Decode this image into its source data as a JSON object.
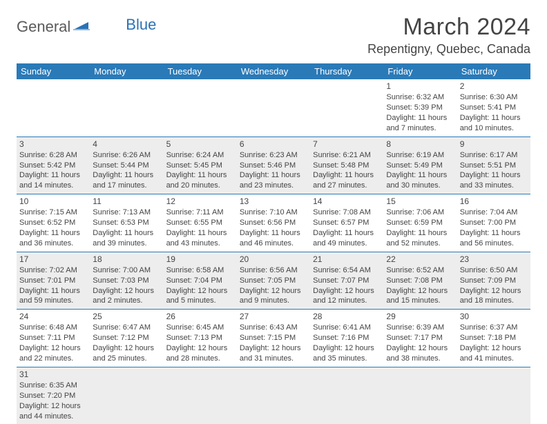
{
  "logo": {
    "part1": "General",
    "part2": "Blue"
  },
  "title": "March 2024",
  "location": "Repentigny, Quebec, Canada",
  "colors": {
    "header_bg": "#2a7ab8",
    "header_text": "#ffffff",
    "alt_row_bg": "#ededed",
    "border": "#2a7ab8",
    "logo_gray": "#5a5a5a",
    "logo_blue": "#2a72b5",
    "text": "#444"
  },
  "weekdays": [
    "Sunday",
    "Monday",
    "Tuesday",
    "Wednesday",
    "Thursday",
    "Friday",
    "Saturday"
  ],
  "weeks": [
    [
      null,
      null,
      null,
      null,
      null,
      {
        "n": "1",
        "sr": "Sunrise: 6:32 AM",
        "ss": "Sunset: 5:39 PM",
        "d1": "Daylight: 11 hours",
        "d2": "and 7 minutes."
      },
      {
        "n": "2",
        "sr": "Sunrise: 6:30 AM",
        "ss": "Sunset: 5:41 PM",
        "d1": "Daylight: 11 hours",
        "d2": "and 10 minutes."
      }
    ],
    [
      {
        "n": "3",
        "sr": "Sunrise: 6:28 AM",
        "ss": "Sunset: 5:42 PM",
        "d1": "Daylight: 11 hours",
        "d2": "and 14 minutes."
      },
      {
        "n": "4",
        "sr": "Sunrise: 6:26 AM",
        "ss": "Sunset: 5:44 PM",
        "d1": "Daylight: 11 hours",
        "d2": "and 17 minutes."
      },
      {
        "n": "5",
        "sr": "Sunrise: 6:24 AM",
        "ss": "Sunset: 5:45 PM",
        "d1": "Daylight: 11 hours",
        "d2": "and 20 minutes."
      },
      {
        "n": "6",
        "sr": "Sunrise: 6:23 AM",
        "ss": "Sunset: 5:46 PM",
        "d1": "Daylight: 11 hours",
        "d2": "and 23 minutes."
      },
      {
        "n": "7",
        "sr": "Sunrise: 6:21 AM",
        "ss": "Sunset: 5:48 PM",
        "d1": "Daylight: 11 hours",
        "d2": "and 27 minutes."
      },
      {
        "n": "8",
        "sr": "Sunrise: 6:19 AM",
        "ss": "Sunset: 5:49 PM",
        "d1": "Daylight: 11 hours",
        "d2": "and 30 minutes."
      },
      {
        "n": "9",
        "sr": "Sunrise: 6:17 AM",
        "ss": "Sunset: 5:51 PM",
        "d1": "Daylight: 11 hours",
        "d2": "and 33 minutes."
      }
    ],
    [
      {
        "n": "10",
        "sr": "Sunrise: 7:15 AM",
        "ss": "Sunset: 6:52 PM",
        "d1": "Daylight: 11 hours",
        "d2": "and 36 minutes."
      },
      {
        "n": "11",
        "sr": "Sunrise: 7:13 AM",
        "ss": "Sunset: 6:53 PM",
        "d1": "Daylight: 11 hours",
        "d2": "and 39 minutes."
      },
      {
        "n": "12",
        "sr": "Sunrise: 7:11 AM",
        "ss": "Sunset: 6:55 PM",
        "d1": "Daylight: 11 hours",
        "d2": "and 43 minutes."
      },
      {
        "n": "13",
        "sr": "Sunrise: 7:10 AM",
        "ss": "Sunset: 6:56 PM",
        "d1": "Daylight: 11 hours",
        "d2": "and 46 minutes."
      },
      {
        "n": "14",
        "sr": "Sunrise: 7:08 AM",
        "ss": "Sunset: 6:57 PM",
        "d1": "Daylight: 11 hours",
        "d2": "and 49 minutes."
      },
      {
        "n": "15",
        "sr": "Sunrise: 7:06 AM",
        "ss": "Sunset: 6:59 PM",
        "d1": "Daylight: 11 hours",
        "d2": "and 52 minutes."
      },
      {
        "n": "16",
        "sr": "Sunrise: 7:04 AM",
        "ss": "Sunset: 7:00 PM",
        "d1": "Daylight: 11 hours",
        "d2": "and 56 minutes."
      }
    ],
    [
      {
        "n": "17",
        "sr": "Sunrise: 7:02 AM",
        "ss": "Sunset: 7:01 PM",
        "d1": "Daylight: 11 hours",
        "d2": "and 59 minutes."
      },
      {
        "n": "18",
        "sr": "Sunrise: 7:00 AM",
        "ss": "Sunset: 7:03 PM",
        "d1": "Daylight: 12 hours",
        "d2": "and 2 minutes."
      },
      {
        "n": "19",
        "sr": "Sunrise: 6:58 AM",
        "ss": "Sunset: 7:04 PM",
        "d1": "Daylight: 12 hours",
        "d2": "and 5 minutes."
      },
      {
        "n": "20",
        "sr": "Sunrise: 6:56 AM",
        "ss": "Sunset: 7:05 PM",
        "d1": "Daylight: 12 hours",
        "d2": "and 9 minutes."
      },
      {
        "n": "21",
        "sr": "Sunrise: 6:54 AM",
        "ss": "Sunset: 7:07 PM",
        "d1": "Daylight: 12 hours",
        "d2": "and 12 minutes."
      },
      {
        "n": "22",
        "sr": "Sunrise: 6:52 AM",
        "ss": "Sunset: 7:08 PM",
        "d1": "Daylight: 12 hours",
        "d2": "and 15 minutes."
      },
      {
        "n": "23",
        "sr": "Sunrise: 6:50 AM",
        "ss": "Sunset: 7:09 PM",
        "d1": "Daylight: 12 hours",
        "d2": "and 18 minutes."
      }
    ],
    [
      {
        "n": "24",
        "sr": "Sunrise: 6:48 AM",
        "ss": "Sunset: 7:11 PM",
        "d1": "Daylight: 12 hours",
        "d2": "and 22 minutes."
      },
      {
        "n": "25",
        "sr": "Sunrise: 6:47 AM",
        "ss": "Sunset: 7:12 PM",
        "d1": "Daylight: 12 hours",
        "d2": "and 25 minutes."
      },
      {
        "n": "26",
        "sr": "Sunrise: 6:45 AM",
        "ss": "Sunset: 7:13 PM",
        "d1": "Daylight: 12 hours",
        "d2": "and 28 minutes."
      },
      {
        "n": "27",
        "sr": "Sunrise: 6:43 AM",
        "ss": "Sunset: 7:15 PM",
        "d1": "Daylight: 12 hours",
        "d2": "and 31 minutes."
      },
      {
        "n": "28",
        "sr": "Sunrise: 6:41 AM",
        "ss": "Sunset: 7:16 PM",
        "d1": "Daylight: 12 hours",
        "d2": "and 35 minutes."
      },
      {
        "n": "29",
        "sr": "Sunrise: 6:39 AM",
        "ss": "Sunset: 7:17 PM",
        "d1": "Daylight: 12 hours",
        "d2": "and 38 minutes."
      },
      {
        "n": "30",
        "sr": "Sunrise: 6:37 AM",
        "ss": "Sunset: 7:18 PM",
        "d1": "Daylight: 12 hours",
        "d2": "and 41 minutes."
      }
    ],
    [
      {
        "n": "31",
        "sr": "Sunrise: 6:35 AM",
        "ss": "Sunset: 7:20 PM",
        "d1": "Daylight: 12 hours",
        "d2": "and 44 minutes."
      },
      null,
      null,
      null,
      null,
      null,
      null
    ]
  ]
}
